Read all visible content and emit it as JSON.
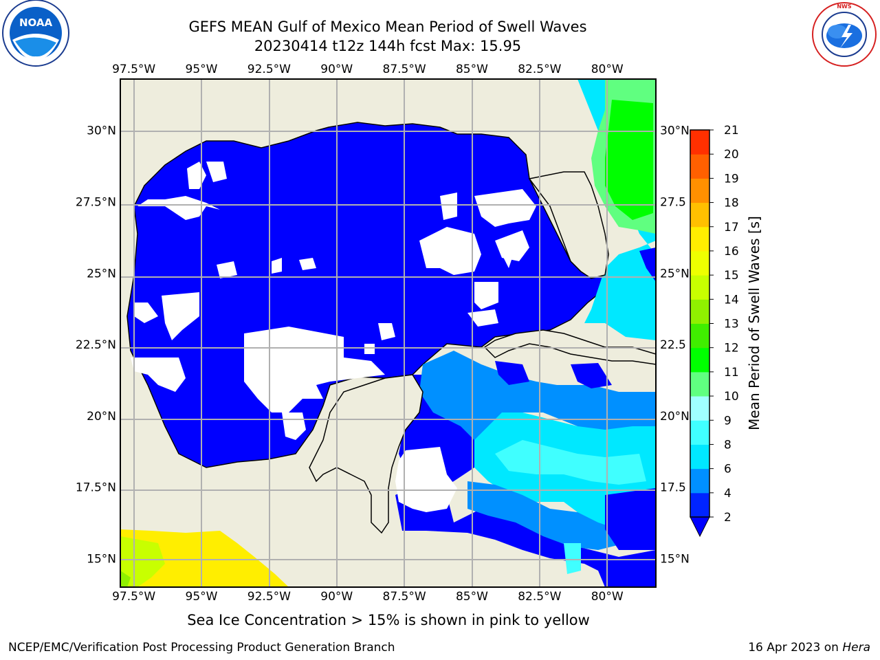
{
  "title": {
    "line1": "GEFS MEAN Gulf of Mexico Mean Period of Swell Waves",
    "line2": "20230414 t12z 144h fcst   Max: 15.95"
  },
  "logos": {
    "left": {
      "icon": "noaa-logo",
      "text": "NOAA",
      "ring_text": "NATIONAL OCEANIC AND ATMOSPHERIC ADMINISTRATION · U.S. DEPARTMENT OF COMMERCE"
    },
    "right": {
      "icon": "nws-logo",
      "ring_text": "NATIONAL WEATHER SERVICE"
    }
  },
  "map": {
    "lon_labels": [
      "97.5°W",
      "95°W",
      "92.5°W",
      "90°W",
      "87.5°W",
      "85°W",
      "82.5°W",
      "80°W"
    ],
    "lat_labels_left": [
      "30°N",
      "27.5°N",
      "25°N",
      "22.5°N",
      "20°N",
      "17.5°N",
      "15°N"
    ],
    "lat_labels_right": [
      "30°N",
      "27.5",
      "25°N",
      "22.5",
      "20°N",
      "17.5",
      "15°N"
    ],
    "lon_values": [
      -97.5,
      -95,
      -92.5,
      -90,
      -87.5,
      -85,
      -82.5,
      -80
    ],
    "lat_values": [
      30,
      27.5,
      25,
      22.5,
      20,
      17.5,
      15
    ],
    "extent": {
      "lon_min": -98,
      "lon_max": -78.2,
      "lat_min": 14.0,
      "lat_max": 31.8
    },
    "colors": {
      "land": "#eeeddd",
      "grid": "#b0b0b0",
      "undefined": "#ffffff"
    }
  },
  "colorbar": {
    "label": "Mean Period of Swell Waves [s]",
    "ticks": [
      "2",
      "4",
      "6",
      "8",
      "9",
      "10",
      "11",
      "12",
      "13",
      "14",
      "15",
      "16",
      "17",
      "18",
      "19",
      "20",
      "21"
    ],
    "colors": [
      "#0024ff",
      "#0090ff",
      "#00e8ff",
      "#40ffff",
      "#a0ffff",
      "#60ff80",
      "#00ff00",
      "#40ee00",
      "#90f000",
      "#c8ff00",
      "#eeff00",
      "#ffee00",
      "#ffc000",
      "#ff9000",
      "#ff6000",
      "#ff3000",
      "#ff0000"
    ],
    "extend_color": "#0000ff"
  },
  "note": "Sea Ice Concentration > 15% is shown in pink to yellow",
  "footer": {
    "left": "NCEP/EMC/Verification Post Processing Product Generation Branch",
    "right_prefix": "16 Apr 2023 on ",
    "right_italic": "Hera"
  }
}
